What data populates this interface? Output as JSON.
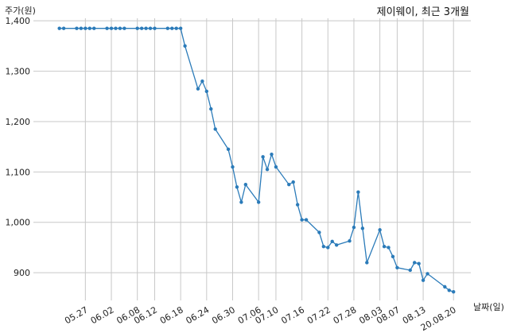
{
  "chart_data": {
    "type": "line",
    "title": "제이웨이, 최근 3개월",
    "xlabel": "날짜(일)",
    "ylabel": "주가(원)",
    "ylim": [
      845,
      1405
    ],
    "yticks": [
      900,
      1000,
      1100,
      1200,
      1300,
      1400
    ],
    "ytick_labels": [
      "900",
      "1,000",
      "1,100",
      "1,200",
      "1,300",
      "1,400"
    ],
    "grid": true,
    "color": "#2b7bb9",
    "x": [
      "2020-05-21",
      "2020-05-22",
      "2020-05-25",
      "2020-05-26",
      "2020-05-27",
      "2020-05-28",
      "2020-05-29",
      "2020-06-01",
      "2020-06-02",
      "2020-06-03",
      "2020-06-04",
      "2020-06-05",
      "2020-06-08",
      "2020-06-09",
      "2020-06-10",
      "2020-06-11",
      "2020-06-12",
      "2020-06-15",
      "2020-06-16",
      "2020-06-17",
      "2020-06-18",
      "2020-06-19",
      "2020-06-22",
      "2020-06-23",
      "2020-06-24",
      "2020-06-25",
      "2020-06-26",
      "2020-06-29",
      "2020-06-30",
      "2020-07-01",
      "2020-07-02",
      "2020-07-03",
      "2020-07-06",
      "2020-07-07",
      "2020-07-08",
      "2020-07-09",
      "2020-07-10",
      "2020-07-13",
      "2020-07-14",
      "2020-07-15",
      "2020-07-16",
      "2020-07-17",
      "2020-07-20",
      "2020-07-21",
      "2020-07-22",
      "2020-07-23",
      "2020-07-24",
      "2020-07-27",
      "2020-07-28",
      "2020-07-29",
      "2020-07-30",
      "2020-07-31",
      "2020-08-03",
      "2020-08-04",
      "2020-08-05",
      "2020-08-06",
      "2020-08-07",
      "2020-08-10",
      "2020-08-11",
      "2020-08-12",
      "2020-08-13",
      "2020-08-14",
      "2020-08-18",
      "2020-08-19",
      "2020-08-20"
    ],
    "values": [
      1385,
      1385,
      1385,
      1385,
      1385,
      1385,
      1385,
      1385,
      1385,
      1385,
      1385,
      1385,
      1385,
      1385,
      1385,
      1385,
      1385,
      1385,
      1385,
      1385,
      1385,
      1350,
      1265,
      1280,
      1260,
      1225,
      1185,
      1145,
      1110,
      1070,
      1040,
      1075,
      1040,
      1130,
      1105,
      1135,
      1110,
      1075,
      1080,
      1035,
      1005,
      1005,
      980,
      952,
      950,
      962,
      955,
      963,
      990,
      1060,
      988,
      920,
      985,
      952,
      950,
      932,
      910,
      905,
      920,
      918,
      885,
      898,
      872,
      865,
      862
    ],
    "xticks": [
      "2020-05-27",
      "2020-06-02",
      "2020-06-08",
      "2020-06-12",
      "2020-06-18",
      "2020-06-24",
      "2020-06-30",
      "2020-07-06",
      "2020-07-10",
      "2020-07-16",
      "2020-07-22",
      "2020-07-28",
      "2020-08-03",
      "2020-08-07",
      "2020-08-13",
      "2020-08-20"
    ],
    "xtick_labels": [
      "05.27",
      "06.02",
      "06.08",
      "06.12",
      "06.18",
      "06.24",
      "06.30",
      "07.06",
      "07.10",
      "07.16",
      "07.22",
      "07.28",
      "08.03",
      "08.07",
      "08.13",
      "20.08.20"
    ]
  }
}
